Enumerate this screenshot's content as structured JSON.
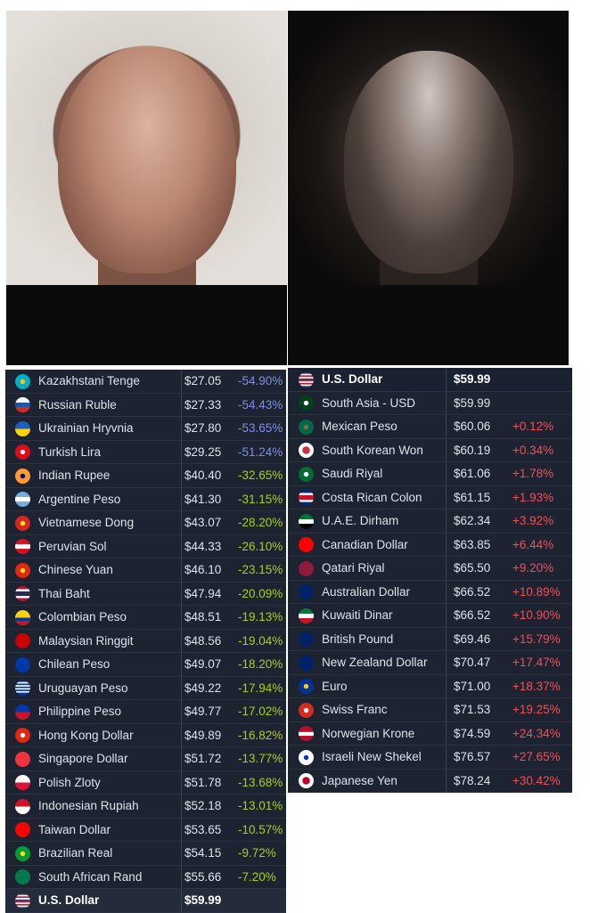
{
  "left_table": [
    {
      "name": "Kazakhstani Tenge",
      "price": "$27.05",
      "pct": "-54.90%",
      "tone": "blue",
      "flag": "kz"
    },
    {
      "name": "Russian Ruble",
      "price": "$27.33",
      "pct": "-54.43%",
      "tone": "blue",
      "flag": "ru"
    },
    {
      "name": "Ukrainian Hryvnia",
      "price": "$27.80",
      "pct": "-53.65%",
      "tone": "blue",
      "flag": "ua"
    },
    {
      "name": "Turkish Lira",
      "price": "$29.25",
      "pct": "-51.24%",
      "tone": "blue",
      "flag": "tr"
    },
    {
      "name": "Indian Rupee",
      "price": "$40.40",
      "pct": "-32.65%",
      "tone": "green",
      "flag": "in"
    },
    {
      "name": "Argentine Peso",
      "price": "$41.30",
      "pct": "-31.15%",
      "tone": "green",
      "flag": "ar"
    },
    {
      "name": "Vietnamese Dong",
      "price": "$43.07",
      "pct": "-28.20%",
      "tone": "green",
      "flag": "vn"
    },
    {
      "name": "Peruvian Sol",
      "price": "$44.33",
      "pct": "-26.10%",
      "tone": "green",
      "flag": "pe"
    },
    {
      "name": "Chinese Yuan",
      "price": "$46.10",
      "pct": "-23.15%",
      "tone": "green",
      "flag": "cn"
    },
    {
      "name": "Thai Baht",
      "price": "$47.94",
      "pct": "-20.09%",
      "tone": "green",
      "flag": "th"
    },
    {
      "name": "Colombian Peso",
      "price": "$48.51",
      "pct": "-19.13%",
      "tone": "green",
      "flag": "co"
    },
    {
      "name": "Malaysian Ringgit",
      "price": "$48.56",
      "pct": "-19.04%",
      "tone": "green",
      "flag": "my"
    },
    {
      "name": "Chilean Peso",
      "price": "$49.07",
      "pct": "-18.20%",
      "tone": "green",
      "flag": "cl"
    },
    {
      "name": "Uruguayan Peso",
      "price": "$49.22",
      "pct": "-17.94%",
      "tone": "green",
      "flag": "uy"
    },
    {
      "name": "Philippine Peso",
      "price": "$49.77",
      "pct": "-17.02%",
      "tone": "green",
      "flag": "ph"
    },
    {
      "name": "Hong Kong Dollar",
      "price": "$49.89",
      "pct": "-16.82%",
      "tone": "green",
      "flag": "hk"
    },
    {
      "name": "Singapore Dollar",
      "price": "$51.72",
      "pct": "-13.77%",
      "tone": "green",
      "flag": "sg"
    },
    {
      "name": "Polish Zloty",
      "price": "$51.78",
      "pct": "-13.68%",
      "tone": "green",
      "flag": "pl"
    },
    {
      "name": "Indonesian Rupiah",
      "price": "$52.18",
      "pct": "-13.01%",
      "tone": "green",
      "flag": "id"
    },
    {
      "name": "Taiwan Dollar",
      "price": "$53.65",
      "pct": "-10.57%",
      "tone": "green",
      "flag": "tw"
    },
    {
      "name": "Brazilian Real",
      "price": "$54.15",
      "pct": "-9.72%",
      "tone": "green",
      "flag": "br"
    },
    {
      "name": "South African Rand",
      "price": "$55.66",
      "pct": "-7.20%",
      "tone": "green",
      "flag": "za"
    },
    {
      "name": "U.S. Dollar",
      "price": "$59.99",
      "pct": "",
      "tone": "base",
      "flag": "us"
    }
  ],
  "right_table": [
    {
      "name": "U.S. Dollar",
      "price": "$59.99",
      "pct": "",
      "tone": "base",
      "flag": "us"
    },
    {
      "name": "South Asia - USD",
      "price": "$59.99",
      "pct": "",
      "tone": "none",
      "flag": "pk"
    },
    {
      "name": "Mexican Peso",
      "price": "$60.06",
      "pct": "+0.12%",
      "tone": "red",
      "flag": "mx"
    },
    {
      "name": "South Korean Won",
      "price": "$60.19",
      "pct": "+0.34%",
      "tone": "red",
      "flag": "kr"
    },
    {
      "name": "Saudi Riyal",
      "price": "$61.06",
      "pct": "+1.78%",
      "tone": "red",
      "flag": "sa"
    },
    {
      "name": "Costa Rican Colon",
      "price": "$61.15",
      "pct": "+1.93%",
      "tone": "red",
      "flag": "cr"
    },
    {
      "name": "U.A.E. Dirham",
      "price": "$62.34",
      "pct": "+3.92%",
      "tone": "red",
      "flag": "ae"
    },
    {
      "name": "Canadian Dollar",
      "price": "$63.85",
      "pct": "+6.44%",
      "tone": "red",
      "flag": "ca"
    },
    {
      "name": "Qatari Riyal",
      "price": "$65.50",
      "pct": "+9.20%",
      "tone": "red",
      "flag": "qa"
    },
    {
      "name": "Australian Dollar",
      "price": "$66.52",
      "pct": "+10.89%",
      "tone": "red",
      "flag": "au"
    },
    {
      "name": "Kuwaiti Dinar",
      "price": "$66.52",
      "pct": "+10.90%",
      "tone": "red",
      "flag": "kw"
    },
    {
      "name": "British Pound",
      "price": "$69.46",
      "pct": "+15.79%",
      "tone": "red",
      "flag": "gb"
    },
    {
      "name": "New Zealand Dollar",
      "price": "$70.47",
      "pct": "+17.47%",
      "tone": "red",
      "flag": "nz"
    },
    {
      "name": "Euro",
      "price": "$71.00",
      "pct": "+18.37%",
      "tone": "red",
      "flag": "eu"
    },
    {
      "name": "Swiss Franc",
      "price": "$71.53",
      "pct": "+19.25%",
      "tone": "red",
      "flag": "ch"
    },
    {
      "name": "Norwegian Krone",
      "price": "$74.59",
      "pct": "+24.34%",
      "tone": "red",
      "flag": "no"
    },
    {
      "name": "Israeli New Shekel",
      "price": "$76.57",
      "pct": "+27.65%",
      "tone": "red",
      "flag": "il"
    },
    {
      "name": "Japanese Yen",
      "price": "$78.24",
      "pct": "+30.42%",
      "tone": "red",
      "flag": "jp"
    }
  ],
  "flag_colors": {
    "kz": "#00afca",
    "ru": "#1c57a7",
    "ua": "#1f5fbf",
    "tr": "#e30a17",
    "in": "#ff9933",
    "ar": "#74acdf",
    "vn": "#da251d",
    "pe": "#d91023",
    "cn": "#de2910",
    "th": "#2d2a4a",
    "co": "#fcd116",
    "my": "#cc0001",
    "cl": "#0039a6",
    "uy": "#0038a8",
    "ph": "#0038a8",
    "hk": "#de2910",
    "sg": "#ef3340",
    "pl": "#dc143c",
    "id": "#ce1126",
    "tw": "#fe0000",
    "br": "#009c3b",
    "za": "#007a4d",
    "us": "#3c3b6e",
    "pk": "#01411c",
    "mx": "#006847",
    "kr": "#ffffff",
    "sa": "#006c35",
    "cr": "#002b7f",
    "ae": "#00732f",
    "ca": "#ff0000",
    "qa": "#8d1b3d",
    "au": "#012169",
    "kw": "#007a3d",
    "gb": "#012169",
    "nz": "#012169",
    "eu": "#003399",
    "ch": "#d52b1e",
    "no": "#ba0c2f",
    "il": "#ffffff",
    "jp": "#ffffff"
  }
}
